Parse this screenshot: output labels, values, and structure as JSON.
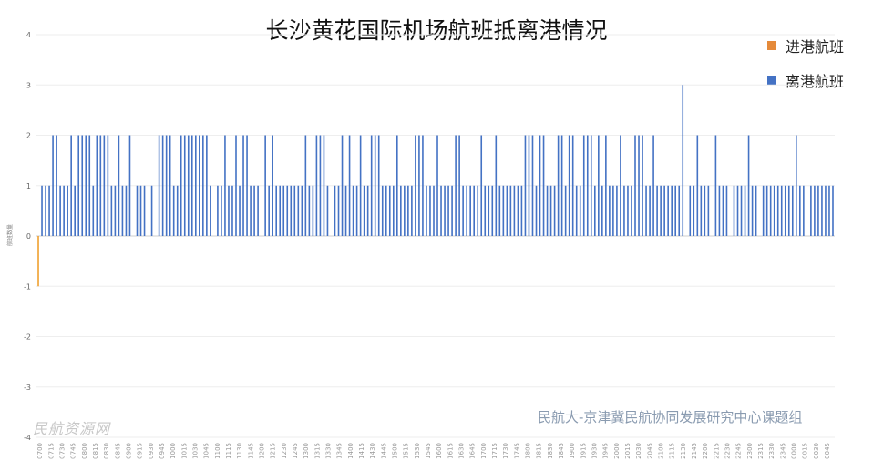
{
  "chart_data": {
    "type": "bar",
    "title": "长沙黄花国际机场航班抵离港情况",
    "ylabel": "航班数量",
    "ylim": [
      -4,
      4
    ],
    "yticks": [
      4,
      3,
      2,
      1,
      0,
      -1,
      -2,
      -3,
      -4
    ],
    "grid": true,
    "legend_position": "top-right",
    "series": [
      {
        "name": "进港航班",
        "color": "#f0a030",
        "values": [
          -1,
          0,
          0,
          0,
          0,
          0,
          0,
          0,
          0,
          0,
          0,
          0,
          0,
          0,
          0,
          0,
          0,
          0,
          0,
          0,
          0,
          0,
          0,
          0,
          0,
          0,
          0,
          0,
          0,
          0,
          0,
          0,
          0,
          0,
          0,
          0,
          0,
          0,
          0,
          0,
          0,
          0,
          0,
          0,
          0,
          0,
          0,
          0,
          0,
          0,
          0,
          0,
          0,
          0,
          0,
          0,
          0,
          0,
          0,
          0,
          0,
          0,
          0,
          0,
          0,
          0,
          0,
          0,
          0,
          0,
          0,
          0,
          0,
          0,
          0,
          0,
          0,
          0,
          0,
          0,
          0,
          0,
          0,
          0,
          0,
          0,
          0,
          0,
          0,
          0,
          0,
          0,
          0,
          0,
          0,
          0,
          0,
          0,
          0,
          0,
          0,
          0,
          0,
          0,
          0,
          0,
          0,
          0,
          0,
          0,
          0,
          0,
          0,
          0,
          0,
          0,
          0,
          0,
          0,
          0,
          0,
          0,
          0,
          0,
          0,
          0,
          0,
          0,
          0,
          0,
          0,
          0,
          0,
          0,
          0,
          0,
          0,
          0,
          0,
          0,
          0,
          0,
          0,
          0,
          0,
          0,
          0,
          0,
          0,
          0,
          0,
          0,
          0,
          0,
          0,
          0,
          0,
          0,
          0,
          0,
          0,
          0,
          0,
          0,
          0,
          0,
          0,
          0,
          0,
          0,
          0,
          0,
          0,
          0,
          0,
          0,
          0,
          0,
          0,
          0,
          0,
          0,
          0,
          0,
          0,
          0,
          0,
          0,
          0,
          0,
          0,
          0,
          0,
          0,
          0,
          0,
          0,
          0,
          0,
          0,
          0,
          0,
          0,
          0,
          0,
          0,
          0,
          0,
          0,
          0,
          0,
          0,
          0,
          0,
          0,
          0,
          0,
          0
        ]
      },
      {
        "name": "离港航班",
        "color": "#4472c4",
        "values": [
          0,
          1,
          1,
          1,
          2,
          2,
          1,
          1,
          1,
          2,
          1,
          2,
          2,
          2,
          2,
          1,
          2,
          2,
          2,
          2,
          1,
          1,
          2,
          1,
          1,
          2,
          0,
          1,
          1,
          1,
          0,
          1,
          0,
          2,
          2,
          2,
          2,
          1,
          1,
          2,
          2,
          2,
          2,
          2,
          2,
          2,
          2,
          1,
          0,
          1,
          1,
          2,
          1,
          1,
          2,
          1,
          2,
          2,
          1,
          1,
          1,
          0,
          2,
          1,
          2,
          1,
          1,
          1,
          1,
          1,
          1,
          1,
          1,
          2,
          1,
          1,
          2,
          2,
          2,
          1,
          0,
          1,
          1,
          2,
          1,
          2,
          1,
          1,
          2,
          1,
          1,
          2,
          2,
          2,
          1,
          1,
          1,
          1,
          2,
          1,
          1,
          1,
          1,
          2,
          2,
          2,
          1,
          1,
          1,
          2,
          1,
          1,
          1,
          1,
          2,
          2,
          1,
          1,
          1,
          1,
          1,
          2,
          1,
          1,
          1,
          2,
          1,
          1,
          1,
          1,
          1,
          1,
          1,
          2,
          2,
          2,
          1,
          2,
          2,
          1,
          1,
          1,
          2,
          2,
          1,
          2,
          2,
          1,
          1,
          2,
          2,
          2,
          1,
          2,
          1,
          2,
          1,
          1,
          1,
          2,
          1,
          1,
          1,
          2,
          2,
          2,
          1,
          1,
          2,
          1,
          1,
          1,
          1,
          1,
          1,
          1,
          3,
          0,
          1,
          1,
          2,
          1,
          1,
          1,
          0,
          2,
          1,
          1,
          1,
          0,
          1,
          1,
          1,
          1,
          2,
          1,
          1,
          0,
          1,
          1,
          1,
          1,
          1,
          1,
          1,
          1,
          1,
          2,
          1,
          1,
          0,
          1,
          1,
          1,
          1,
          1,
          1,
          1,
          0
        ]
      }
    ],
    "x_tick_labels": [
      "0700",
      "0715",
      "0730",
      "0745",
      "0800",
      "0815",
      "0830",
      "0845",
      "0900",
      "0915",
      "0930",
      "0945",
      "1000",
      "1015",
      "1030",
      "1045",
      "1100",
      "1115",
      "1130",
      "1145",
      "1200",
      "1215",
      "1230",
      "1245",
      "1300",
      "1315",
      "1330",
      "1345",
      "1400",
      "1415",
      "1430",
      "1445",
      "1500",
      "1515",
      "1530",
      "1545",
      "1600",
      "1615",
      "1630",
      "1645",
      "1700",
      "1715",
      "1730",
      "1745",
      "1800",
      "1815",
      "1830",
      "1845",
      "1900",
      "1915",
      "1930",
      "1945",
      "2000",
      "2015",
      "2030",
      "2045",
      "2100",
      "2115",
      "2130",
      "2145",
      "2200",
      "2215",
      "2230",
      "2245",
      "2300",
      "2315",
      "2330",
      "2345",
      "0000",
      "0015",
      "0030",
      "0045"
    ]
  },
  "credit": "民航大-京津冀民航协同发展研究中心课题组",
  "watermark": "民航资源网"
}
